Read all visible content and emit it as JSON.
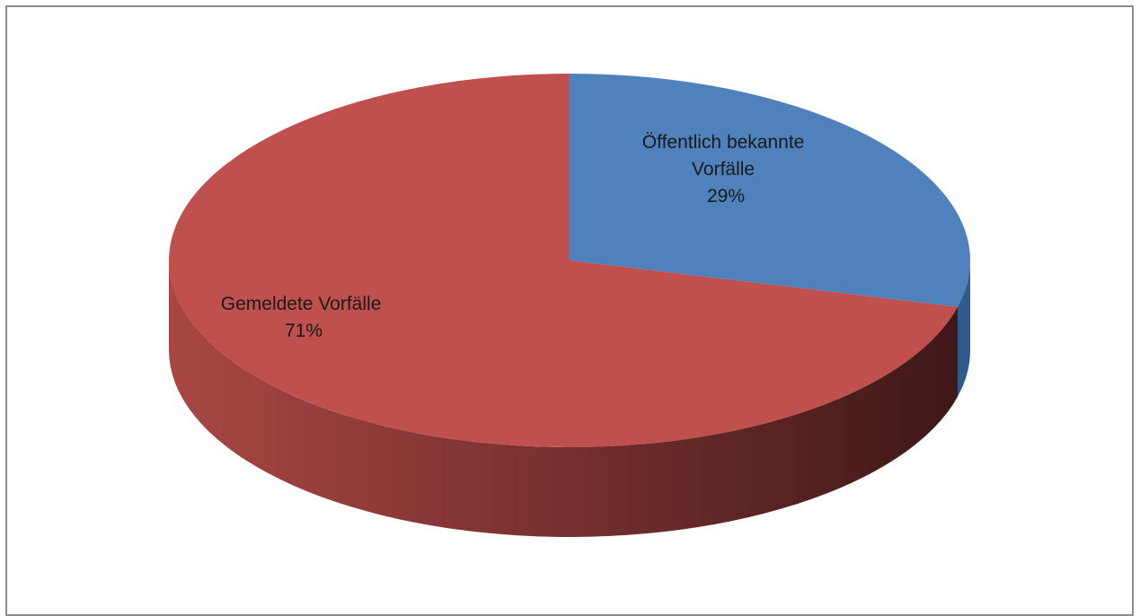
{
  "chart_data": {
    "type": "pie",
    "title": "",
    "style": "3d",
    "slices": [
      {
        "label_lines": [
          "Öffentlich bekannte",
          "Vorfälle"
        ],
        "percent_label": "29%",
        "value": 29,
        "color": "#4f81bd"
      },
      {
        "label_lines": [
          "Gemeldete Vorfälle"
        ],
        "percent_label": "71%",
        "value": 71,
        "color": "#c0504d"
      }
    ],
    "legend": "none"
  }
}
